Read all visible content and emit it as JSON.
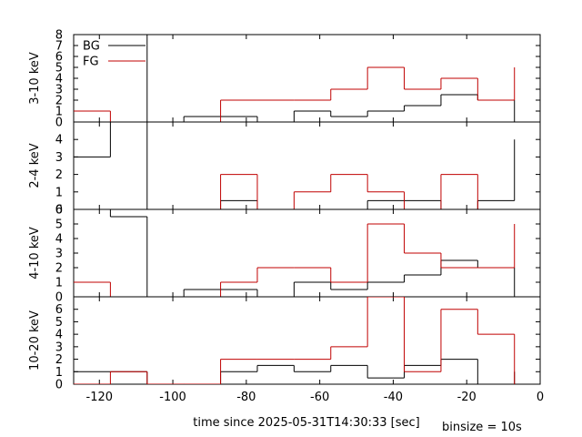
{
  "chart_data": [
    {
      "type": "step",
      "ylabel": "3-10 keV",
      "ylim": [
        0,
        8
      ],
      "yticks": [
        0,
        1,
        2,
        3,
        4,
        5,
        6,
        7,
        8
      ],
      "legend": {
        "placement": "top-left",
        "entries": [
          {
            "label": "BG",
            "color": "#000000"
          },
          {
            "label": "FG",
            "color": "#c00000"
          }
        ]
      },
      "series": [
        {
          "name": "BG",
          "color": "#000000",
          "x": [
            -127,
            -117,
            -107,
            -97,
            -87,
            -77,
            -67,
            -57,
            -47,
            -37,
            -27,
            -17,
            -7
          ],
          "values": [
            8,
            8,
            0,
            0.5,
            0.5,
            0,
            1,
            0.5,
            1,
            1.5,
            2.5,
            2,
            0
          ]
        },
        {
          "name": "FG",
          "color": "#c00000",
          "x": [
            -127,
            -117,
            -107,
            -97,
            -87,
            -77,
            -67,
            -57,
            -47,
            -37,
            -27,
            -17,
            -7
          ],
          "values": [
            1,
            0,
            0,
            0,
            2,
            2,
            2,
            3,
            5,
            3,
            4,
            2,
            5
          ]
        }
      ]
    },
    {
      "type": "step",
      "ylabel": "2-4 keV",
      "ylim": [
        0,
        5
      ],
      "yticks": [
        0,
        1,
        2,
        3,
        4
      ],
      "series": [
        {
          "name": "BG",
          "color": "#000000",
          "x": [
            -127,
            -117,
            -107,
            -97,
            -87,
            -77,
            -67,
            -57,
            -47,
            -37,
            -27,
            -17,
            -7
          ],
          "values": [
            3,
            5,
            0,
            0,
            0.5,
            0,
            0,
            0,
            0.5,
            0.5,
            0,
            0.5,
            4
          ]
        },
        {
          "name": "FG",
          "color": "#c00000",
          "x": [
            -127,
            -117,
            -107,
            -97,
            -87,
            -77,
            -67,
            -57,
            -47,
            -37,
            -27,
            -17,
            -7
          ],
          "values": [
            0,
            0,
            0,
            0,
            2,
            0,
            1,
            2,
            1,
            0,
            2,
            0,
            0
          ]
        }
      ]
    },
    {
      "type": "step",
      "ylabel": "4-10 keV",
      "ylim": [
        0,
        6
      ],
      "yticks": [
        0,
        1,
        2,
        3,
        4,
        5,
        6
      ],
      "series": [
        {
          "name": "BG",
          "color": "#000000",
          "x": [
            -127,
            -117,
            -107,
            -97,
            -87,
            -77,
            -67,
            -57,
            -47,
            -37,
            -27,
            -17,
            -7
          ],
          "values": [
            6,
            5.5,
            0,
            0.5,
            0.5,
            0,
            1,
            0.5,
            1,
            1.5,
            2.5,
            2,
            0
          ]
        },
        {
          "name": "FG",
          "color": "#c00000",
          "x": [
            -127,
            -117,
            -107,
            -97,
            -87,
            -77,
            -67,
            -57,
            -47,
            -37,
            -27,
            -17,
            -7
          ],
          "values": [
            1,
            0,
            0,
            0,
            1,
            2,
            2,
            1,
            5,
            3,
            2,
            2,
            5
          ]
        }
      ]
    },
    {
      "type": "step",
      "ylabel": "10-20 keV",
      "ylim": [
        0,
        7
      ],
      "yticks": [
        0,
        1,
        2,
        3,
        4,
        5,
        6
      ],
      "series": [
        {
          "name": "BG",
          "color": "#000000",
          "x": [
            -127,
            -117,
            -107,
            -97,
            -87,
            -77,
            -67,
            -57,
            -47,
            -37,
            -27,
            -17,
            -7
          ],
          "values": [
            1,
            1,
            0,
            0,
            1,
            1.5,
            1,
            1.5,
            0.5,
            1.5,
            2,
            0,
            1
          ]
        },
        {
          "name": "FG",
          "color": "#c00000",
          "x": [
            -127,
            -117,
            -107,
            -97,
            -87,
            -77,
            -67,
            -57,
            -47,
            -37,
            -27,
            -17,
            -7
          ],
          "values": [
            0,
            1,
            0,
            0,
            2,
            2,
            2,
            3,
            7,
            1,
            6,
            4,
            0
          ]
        }
      ]
    }
  ],
  "xaxis": {
    "label": "time since 2025-05-31T14:30:33 [sec]",
    "xlim": [
      -127,
      0
    ],
    "ticks": [
      -120,
      -100,
      -80,
      -60,
      -40,
      -20,
      0
    ]
  },
  "binsize_label": "binsize = 10s"
}
